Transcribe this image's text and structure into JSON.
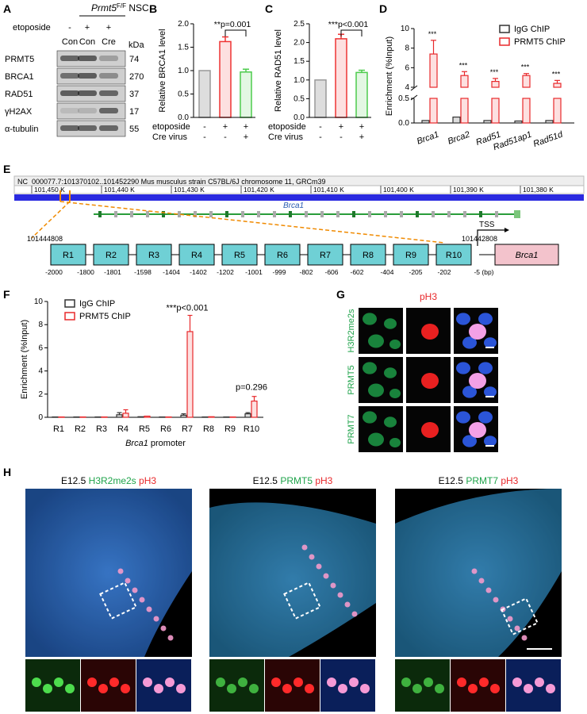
{
  "panels": {
    "A": "A",
    "B": "B",
    "C": "C",
    "D": "D",
    "E": "E",
    "F": "F",
    "G": "G",
    "H": "H"
  },
  "panelA": {
    "header_gene": "Prmt5",
    "header_sup": "F/F",
    "header_rest": " NSC",
    "etoposide_label": "etoposide",
    "etoposide_signs": [
      "-",
      "+",
      "+"
    ],
    "lane_labels": [
      "Con",
      "Con",
      "Cre"
    ],
    "kda_label": "kDa",
    "proteins": [
      "PRMT5",
      "BRCA1",
      "RAD51",
      "γH2AX",
      "α-tubulin"
    ],
    "kda": [
      "74",
      "270",
      "37",
      "17",
      "55"
    ]
  },
  "chart_data": [
    {
      "id": "B",
      "type": "bar",
      "categories": [
        "1",
        "2",
        "3"
      ],
      "values": [
        1.0,
        1.62,
        0.97
      ],
      "errors": [
        0,
        0.1,
        0.06
      ],
      "colors": [
        "#999999",
        "#ee3333",
        "#4dcc4d"
      ],
      "fills": [
        "#dddddd",
        "#fde0e0",
        "#e3f7e3"
      ],
      "ylabel": "Relative BRCA1 level",
      "ylim": [
        0,
        2.0
      ],
      "yticks": [
        "0.0",
        "0.5",
        "1.0",
        "1.5",
        "2.0"
      ],
      "annotation": "**p=0.001",
      "row_labels": [
        "etoposide",
        "Cre virus"
      ],
      "row1_signs": [
        "-",
        "+",
        "+"
      ],
      "row2_signs": [
        "-",
        "-",
        "+"
      ]
    },
    {
      "id": "C",
      "type": "bar",
      "categories": [
        "1",
        "2",
        "3"
      ],
      "values": [
        1.0,
        2.1,
        1.2
      ],
      "errors": [
        0,
        0.12,
        0.06
      ],
      "colors": [
        "#999999",
        "#ee3333",
        "#4dcc4d"
      ],
      "fills": [
        "#dddddd",
        "#fde0e0",
        "#e3f7e3"
      ],
      "ylabel": "Relative RAD51 level",
      "ylim": [
        0,
        2.5
      ],
      "yticks": [
        "0.0",
        "0.5",
        "1.0",
        "1.5",
        "2.0",
        "2.5"
      ],
      "annotation": "***p<0.001",
      "row_labels": [
        "etoposide",
        "Cre virus"
      ],
      "row1_signs": [
        "-",
        "+",
        "+"
      ],
      "row2_signs": [
        "-",
        "-",
        "+"
      ]
    },
    {
      "id": "D",
      "type": "bar",
      "categories": [
        "Brca1",
        "Brca2",
        "Rad51",
        "Rad51ap1",
        "Rad51d"
      ],
      "series": [
        {
          "name": "IgG ChIP",
          "values": [
            0.05,
            0.12,
            0.05,
            0.04,
            0.05
          ],
          "errors": [
            0.02,
            0.05,
            0.02,
            0.02,
            0.02
          ]
        },
        {
          "name": "PRMT5 ChIP",
          "values": [
            7.4,
            5.2,
            4.6,
            5.2,
            4.4
          ],
          "errors": [
            1.4,
            0.4,
            0.3,
            0.2,
            0.3
          ]
        }
      ],
      "ylabel": "Enrichment (%Input)",
      "ylim": [
        0,
        10
      ],
      "axis_break": [
        0.5,
        4
      ],
      "yticks": [
        "0.0",
        "0.5",
        "4",
        "6",
        "8",
        "10"
      ],
      "stars": [
        "***",
        "***",
        "***",
        "***",
        "***"
      ]
    },
    {
      "id": "F",
      "type": "bar",
      "categories": [
        "R1",
        "R2",
        "R3",
        "R4",
        "R5",
        "R6",
        "R7",
        "R8",
        "R9",
        "R10"
      ],
      "series": [
        {
          "name": "IgG ChIP",
          "values": [
            0.03,
            0.03,
            0.03,
            0.22,
            0.05,
            0.03,
            0.18,
            0.03,
            0.03,
            0.3
          ],
          "errors": [
            0.02,
            0.02,
            0.02,
            0.18,
            0.05,
            0.02,
            0.12,
            0.02,
            0.02,
            0.1
          ]
        },
        {
          "name": "PRMT5 ChIP",
          "values": [
            0.03,
            0.03,
            0.03,
            0.35,
            0.1,
            0.03,
            7.4,
            0.05,
            0.03,
            1.4
          ],
          "errors": [
            0.02,
            0.02,
            0.02,
            0.3,
            0.05,
            0.02,
            1.4,
            0.03,
            0.02,
            0.4
          ]
        }
      ],
      "ylabel": "Enrichment (%Input)",
      "ylim": [
        0,
        10
      ],
      "yticks": [
        "0",
        "2",
        "4",
        "6",
        "8",
        "10"
      ],
      "xlabel_italic": "Brca1",
      "xlabel_rest": " promoter",
      "annot_r7": "***p<0.001",
      "annot_r10": "p=0.296"
    }
  ],
  "panelE": {
    "header": "NC_000077.7:101370102..101452290 Mus musculus strain C57BL/6J chromosome 11, GRCm39",
    "ruler": [
      "101,450 K",
      "101,440 K",
      "101,430 K",
      "101,420 K",
      "101,410 K",
      "101,400 K",
      "101,390 K",
      "101,380 K"
    ],
    "gene": "Brca1",
    "coord_left": "101444808",
    "coord_right": "101442808",
    "tss": "TSS",
    "regions": [
      "R1",
      "R2",
      "R3",
      "R4",
      "R5",
      "R6",
      "R7",
      "R8",
      "R9",
      "R10"
    ],
    "positions": [
      "-2000",
      "-1800",
      "-1801",
      "-1598",
      "-1404",
      "-1402",
      "-1202",
      "-1001",
      "-999",
      "-802",
      "-606",
      "-602",
      "-404",
      "-205",
      "-202",
      "-5 (bp)"
    ],
    "gene_box": "Brca1"
  },
  "panelG": {
    "title": "pH3",
    "rows": [
      "H3R2me2s",
      "PRMT5",
      "PRMT7"
    ]
  },
  "panelH": {
    "stage": "E12.5",
    "panels": [
      {
        "marker": "H3R2me2s",
        "ph3": "pH3"
      },
      {
        "marker": "PRMT5",
        "ph3": "pH3"
      },
      {
        "marker": "PRMT7",
        "ph3": "pH3"
      }
    ]
  },
  "colors": {
    "red": "#e8282b",
    "green": "#1ea34a",
    "gray": "#777777"
  }
}
